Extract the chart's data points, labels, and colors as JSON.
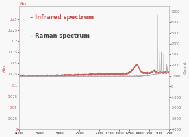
{
  "title": "",
  "xlabel_ticks": [
    4000,
    3500,
    3000,
    2500,
    2000,
    1750,
    1500,
    1250,
    1000,
    750,
    500,
    250
  ],
  "xlim": [
    4000,
    250
  ],
  "ir_ylim": [
    0,
    0.28
  ],
  "ir_yticks": [
    0,
    0.025,
    0.05,
    0.075,
    0.1,
    0.125,
    0.15,
    0.175,
    0.2,
    0.225,
    0.25
  ],
  "raman_ylim": [
    -4000,
    7500
  ],
  "raman_yticks": [
    -4000,
    -3000,
    -2000,
    -1000,
    0,
    1000,
    2000,
    3000,
    4000,
    5000,
    6000,
    7000
  ],
  "ir_label": "Abs",
  "raman_label": "Count",
  "legend_ir": "– Infrared spectrum",
  "legend_raman": "– Raman spectrum",
  "ir_color": "#c0504d",
  "raman_color": "#aaaaaa",
  "background_color": "#f8f8f8"
}
